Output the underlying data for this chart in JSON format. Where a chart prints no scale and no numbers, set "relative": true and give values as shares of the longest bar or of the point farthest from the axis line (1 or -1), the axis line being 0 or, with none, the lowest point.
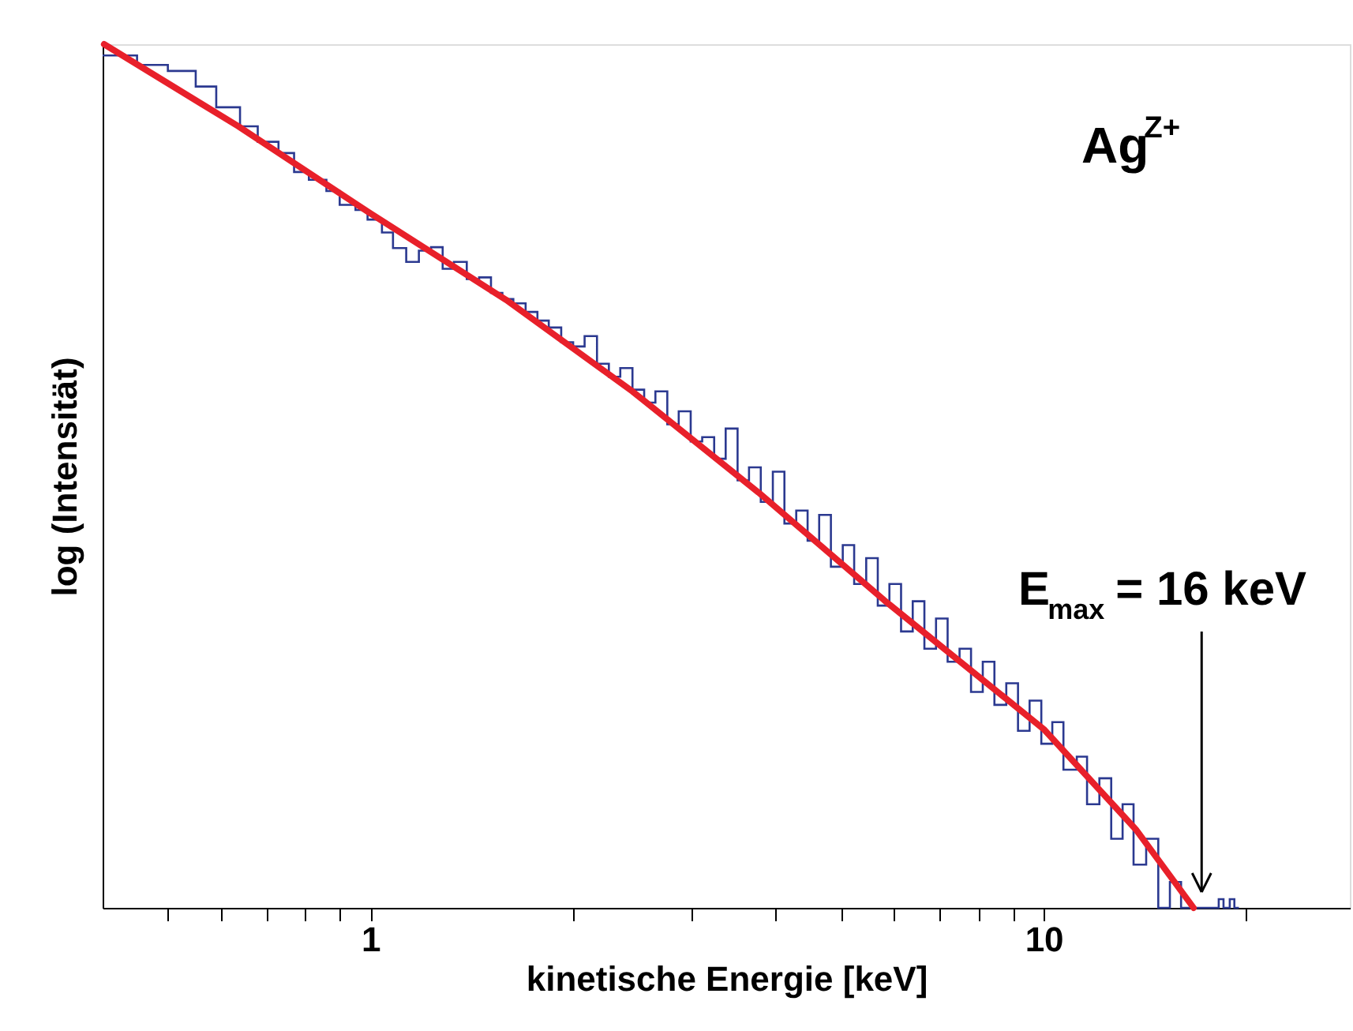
{
  "chart_data": {
    "type": "step",
    "xlabel": "kinetische Energie [keV]",
    "ylabel": "log (Intensität)",
    "relative": true,
    "log": "x",
    "grid": false,
    "xlim": [
      0.4,
      28.5
    ],
    "xticks": [
      {
        "value": 0.5,
        "label": null
      },
      {
        "value": 0.6,
        "label": null
      },
      {
        "value": 0.7,
        "label": null
      },
      {
        "value": 0.8,
        "label": null
      },
      {
        "value": 0.9,
        "label": null
      },
      1,
      {
        "value": 2,
        "label": null
      },
      {
        "value": 3,
        "label": null
      },
      {
        "value": 4,
        "label": null
      },
      {
        "value": 5,
        "label": null
      },
      {
        "value": 6,
        "label": null
      },
      {
        "value": 7,
        "label": null
      },
      {
        "value": 8,
        "label": null
      },
      {
        "value": 9,
        "label": null
      },
      10,
      {
        "value": 20,
        "label": null
      }
    ],
    "annotations": [
      "Ag$^{Z+}$",
      "E$_{max}$ = 16 keV"
    ],
    "series": [
      {
        "color": "#2b3990",
        "x": [
          0.4,
          0.45,
          0.5,
          0.55,
          0.59,
          0.64,
          0.68,
          0.73,
          0.77,
          0.81,
          0.86,
          0.9,
          0.95,
          0.99,
          1.04,
          1.08,
          1.13,
          1.18,
          1.23,
          1.28,
          1.33,
          1.39,
          1.45,
          1.51,
          1.57,
          1.63,
          1.7,
          1.77,
          1.84,
          1.92,
          2.0,
          2.08,
          2.17,
          2.26,
          2.35,
          2.45,
          2.55,
          2.65,
          2.76,
          2.87,
          2.99,
          3.11,
          3.24,
          3.37,
          3.51,
          3.65,
          3.8,
          3.96,
          4.12,
          4.29,
          4.46,
          4.64,
          4.83,
          5.03,
          5.23,
          5.45,
          5.67,
          5.9,
          6.14,
          6.39,
          6.65,
          6.92,
          7.2,
          7.5,
          7.8,
          8.12,
          8.45,
          8.8,
          9.16,
          9.53,
          9.92,
          10.3,
          10.7,
          11.2,
          11.6,
          12.1,
          12.6,
          13.1,
          13.6,
          14.2,
          14.8,
          15.4,
          16.0,
          18.2,
          18.5,
          18.9,
          19.2,
          19.5
        ],
        "values": [
          0.987,
          0.976,
          0.969,
          0.951,
          0.927,
          0.905,
          0.887,
          0.874,
          0.852,
          0.843,
          0.83,
          0.814,
          0.808,
          0.797,
          0.782,
          0.764,
          0.748,
          0.761,
          0.765,
          0.74,
          0.748,
          0.728,
          0.73,
          0.712,
          0.705,
          0.7,
          0.69,
          0.68,
          0.672,
          0.655,
          0.65,
          0.662,
          0.63,
          0.615,
          0.625,
          0.6,
          0.585,
          0.598,
          0.56,
          0.575,
          0.54,
          0.545,
          0.52,
          0.555,
          0.495,
          0.51,
          0.47,
          0.505,
          0.445,
          0.46,
          0.425,
          0.455,
          0.395,
          0.42,
          0.375,
          0.405,
          0.35,
          0.375,
          0.32,
          0.355,
          0.3,
          0.335,
          0.285,
          0.3,
          0.25,
          0.285,
          0.235,
          0.26,
          0.205,
          0.24,
          0.19,
          0.215,
          0.16,
          0.175,
          0.12,
          0.15,
          0.08,
          0.12,
          0.05,
          0.08,
          0.0,
          0.03,
          0.0,
          0.01,
          0.0,
          0.01,
          0.0,
          0.0
        ]
      },
      {
        "type": "line",
        "color": "#e8202a",
        "x": [
          0.402,
          0.636,
          1.0,
          1.59,
          2.45,
          3.77,
          5.8,
          10.0,
          13.7,
          16.7
        ],
        "values": [
          1.0,
          0.905,
          0.804,
          0.704,
          0.598,
          0.481,
          0.356,
          0.207,
          0.091,
          0.0
        ]
      }
    ]
  }
}
